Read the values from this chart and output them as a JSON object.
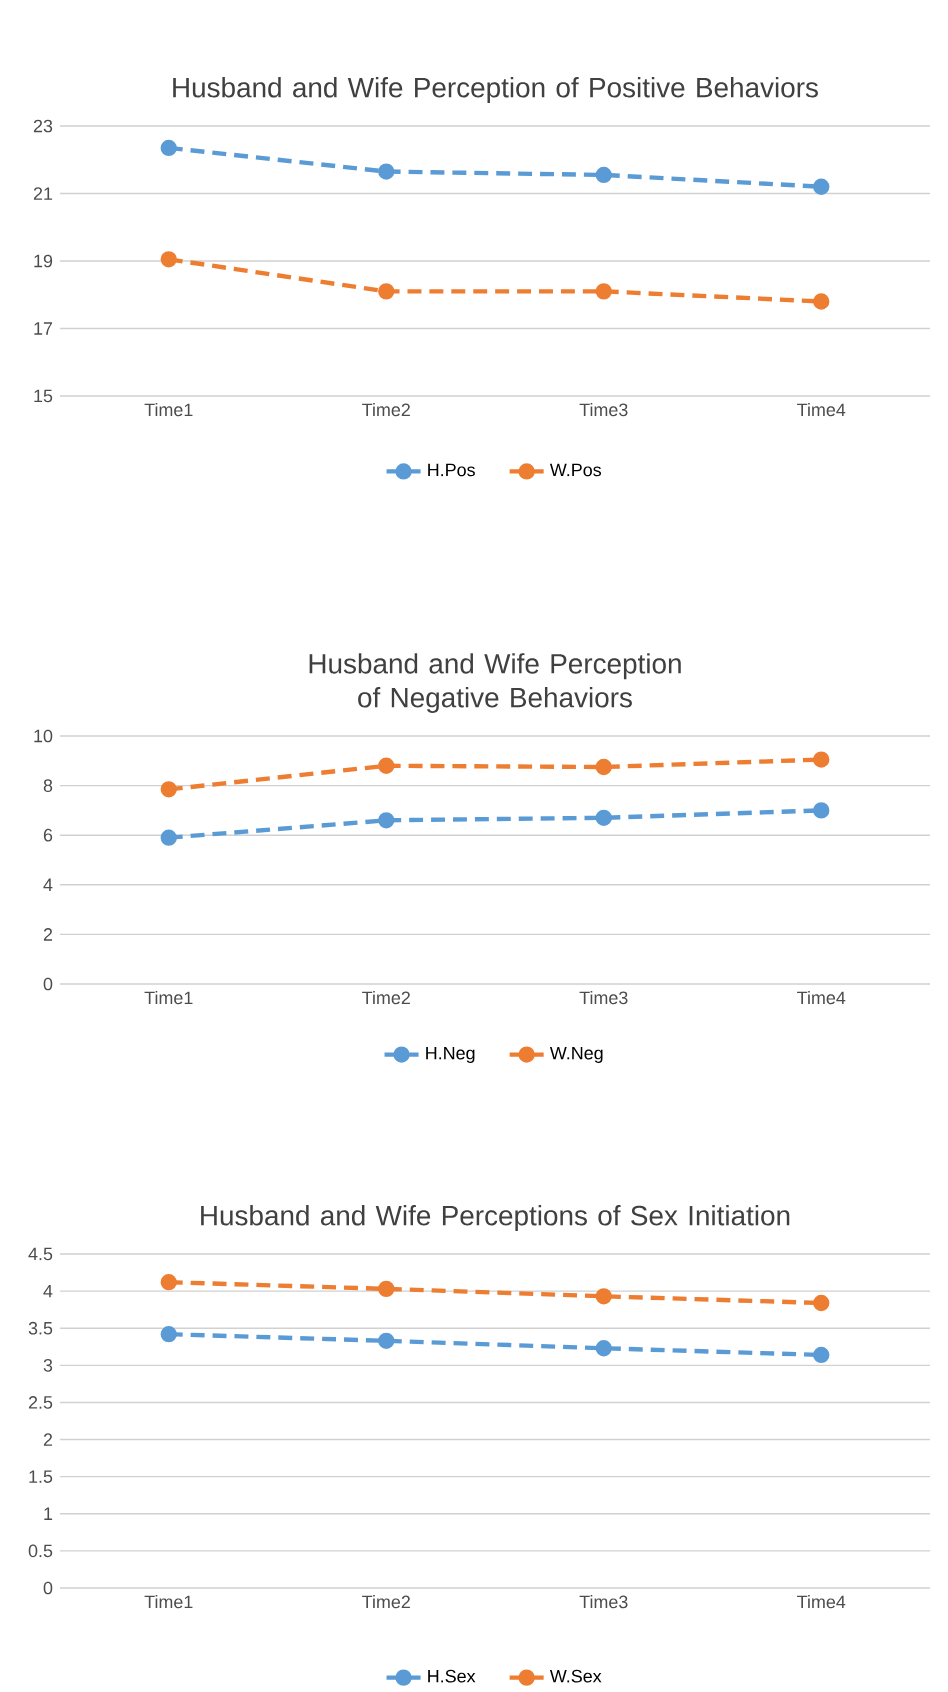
{
  "chart_data": [
    {
      "type": "line",
      "title": "Husband and Wife Perception of Positive Behaviors",
      "categories": [
        "Time1",
        "Time2",
        "Time3",
        "Time4"
      ],
      "series": [
        {
          "name": "H.Pos",
          "color": "#5b9bd5",
          "values": [
            22.35,
            21.65,
            21.55,
            21.2
          ],
          "line_style": "dashed"
        },
        {
          "name": "W.Pos",
          "color": "#ed7d31",
          "values": [
            19.05,
            18.1,
            18.1,
            17.8
          ],
          "line_style": "dashed"
        }
      ],
      "ylim": [
        15,
        23
      ],
      "yticks": [
        15,
        17,
        19,
        21,
        23
      ],
      "grid": "y",
      "legend": "bottom",
      "marker": "circle"
    },
    {
      "type": "line",
      "title": "Husband and Wife Perception of Negative Behaviors",
      "categories": [
        "Time1",
        "Time2",
        "Time3",
        "Time4"
      ],
      "series": [
        {
          "name": "H.Neg",
          "color": "#5b9bd5",
          "values": [
            5.9,
            6.6,
            6.7,
            7.0
          ],
          "line_style": "dashed"
        },
        {
          "name": "W.Neg",
          "color": "#ed7d31",
          "values": [
            7.85,
            8.8,
            8.75,
            9.05
          ],
          "line_style": "dashed"
        }
      ],
      "ylim": [
        0,
        10
      ],
      "yticks": [
        0,
        2,
        4,
        6,
        8,
        10
      ],
      "grid": "y",
      "legend": "bottom",
      "marker": "circle"
    },
    {
      "type": "line",
      "title": "Husband and Wife Perceptions of Sex Initiation",
      "categories": [
        "Time1",
        "Time2",
        "Time3",
        "Time4"
      ],
      "series": [
        {
          "name": "H.Sex",
          "color": "#5b9bd5",
          "values": [
            3.42,
            3.33,
            3.23,
            3.14
          ],
          "line_style": "dashed"
        },
        {
          "name": "W.Sex",
          "color": "#ed7d31",
          "values": [
            4.12,
            4.03,
            3.93,
            3.84
          ],
          "line_style": "dashed"
        }
      ],
      "ylim": [
        0,
        4.5
      ],
      "yticks": [
        0,
        0.5,
        1,
        1.5,
        2,
        2.5,
        3,
        3.5,
        4,
        4.5
      ],
      "grid": "y",
      "legend": "bottom",
      "marker": "circle"
    }
  ]
}
